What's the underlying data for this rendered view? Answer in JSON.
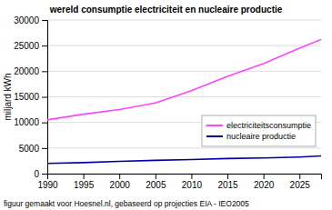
{
  "chart_data": {
    "type": "line",
    "title": "wereld consumptie electriciteit en nucleaire productie",
    "ylabel": "miljard kWh",
    "footnote": "figuur gemaakt voor Hoesnel.nl, gebaseerd op projecties EIA - IEO2005",
    "x": [
      1990,
      1995,
      2000,
      2005,
      2010,
      2015,
      2020,
      2025,
      2028
    ],
    "series": [
      {
        "name": "electriciteitsconsumptie",
        "color": "#ff44ff",
        "values": [
          10500,
          11600,
          12500,
          13800,
          16200,
          19000,
          21500,
          24500,
          26200
        ]
      },
      {
        "name": "nucleaire productie",
        "color": "#0000aa",
        "values": [
          2000,
          2150,
          2400,
          2600,
          2750,
          2950,
          3050,
          3250,
          3450
        ]
      }
    ],
    "xlim": [
      1990,
      2028
    ],
    "ylim": [
      0,
      30000
    ],
    "xticks": [
      1990,
      1995,
      2000,
      2005,
      2010,
      2015,
      2020,
      2025
    ],
    "yticks": [
      0,
      5000,
      10000,
      15000,
      20000,
      25000,
      30000
    ],
    "grid": "y",
    "legend": "lower right"
  }
}
